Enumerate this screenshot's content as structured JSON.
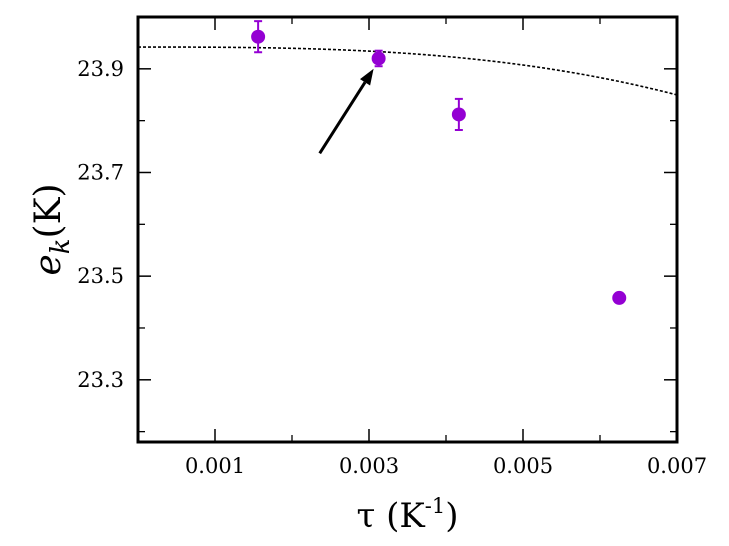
{
  "chart_data": {
    "type": "scatter",
    "xlabel": {
      "base": "τ (K",
      "sup": "-1",
      "tail": ")"
    },
    "ylabel": {
      "base": "e",
      "sub": "k",
      "tail": "(K)"
    },
    "xlim": [
      0.0,
      0.007
    ],
    "ylim": [
      23.18,
      24.0
    ],
    "xticks": [
      0.001,
      0.003,
      0.005,
      0.007
    ],
    "xtick_labels": [
      "0.001",
      "0.003",
      "0.005",
      "0.007"
    ],
    "xticks_minor": [
      0.002,
      0.004,
      0.006
    ],
    "yticks": [
      23.3,
      23.5,
      23.7,
      23.9
    ],
    "ytick_labels": [
      "23.3",
      "23.5",
      "23.7",
      "23.9"
    ],
    "yticks_minor": [
      23.2,
      23.4,
      23.6,
      23.8
    ],
    "grid": false,
    "series": [
      {
        "kind": "points-with-errorbars",
        "color": "#9400d3",
        "points": [
          {
            "x": 0.00156,
            "y": 23.962,
            "err": 0.03
          },
          {
            "x": 0.003125,
            "y": 23.92,
            "err": 0.015
          },
          {
            "x": 0.004167,
            "y": 23.812,
            "err": 0.03
          },
          {
            "x": 0.00625,
            "y": 23.458,
            "err": 0.008
          }
        ]
      },
      {
        "kind": "fit-curve",
        "style": "dashed",
        "color": "#000000",
        "model": "y = a - b*x^c",
        "params": {
          "a": 23.942,
          "b": 173990,
          "c": 2.912
        }
      }
    ],
    "annotation": {
      "type": "arrow",
      "color": "#000000",
      "tail": {
        "x": 0.00236,
        "y": 23.737
      },
      "head": {
        "x": 0.00306,
        "y": 23.9
      }
    }
  }
}
